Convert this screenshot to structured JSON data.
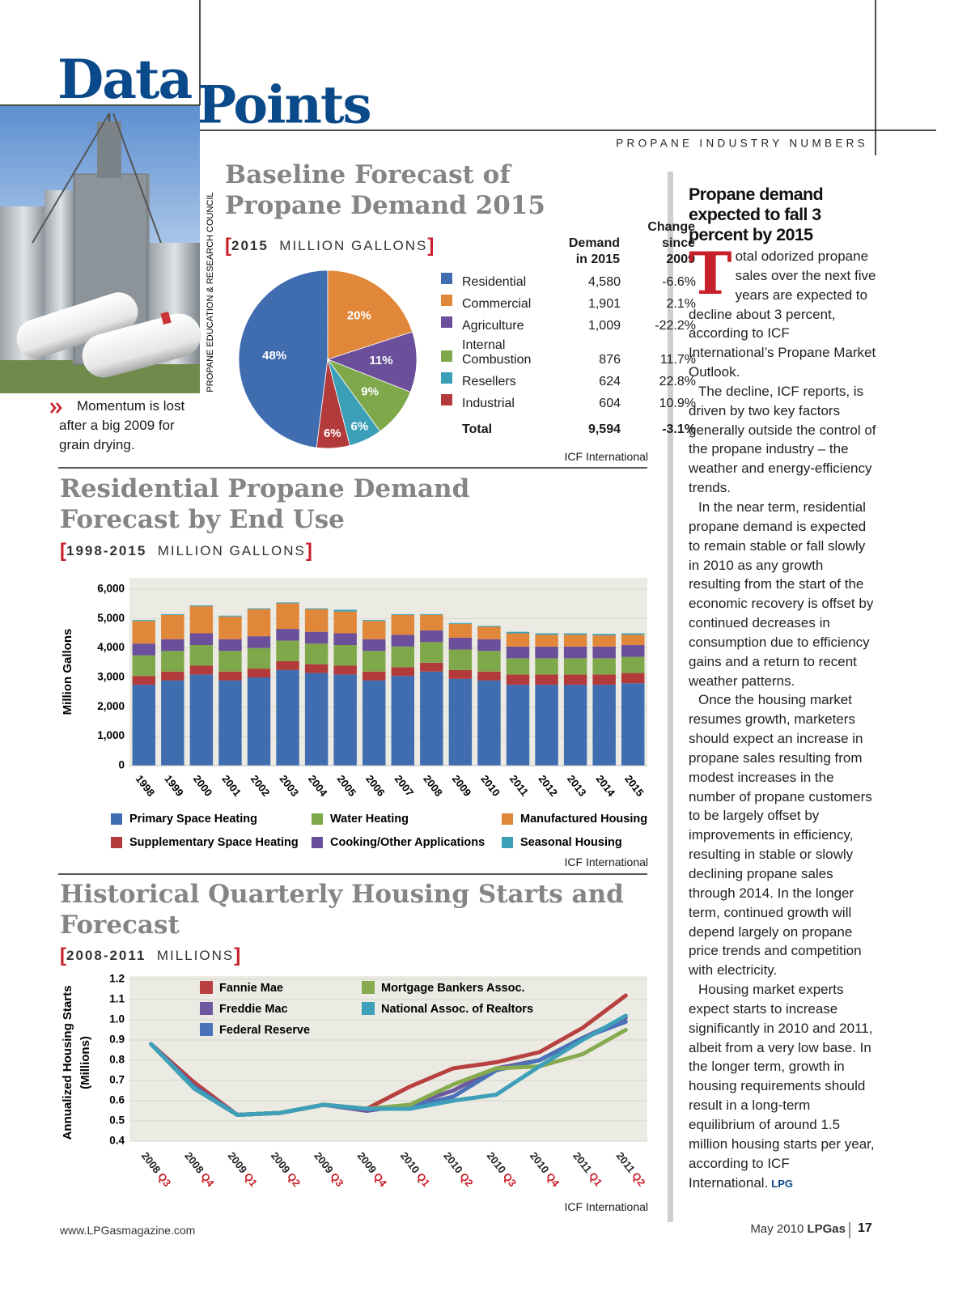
{
  "header": {
    "title_first": "Data",
    "title_second": "Points",
    "section": "PROPANE INDUSTRY NUMBERS"
  },
  "photo": {
    "credit": "PROPANE EDUCATION & RESEARCH COUNCIL",
    "caption": "Momentum is lost after a big 2009 for grain drying."
  },
  "chart_data": [
    {
      "type": "pie",
      "title": "Baseline Forecast of Propane Demand 2015",
      "subtitle_range": "2015",
      "subtitle_units": "MILLION GALLONS",
      "categories": [
        "Residential",
        "Commercial",
        "Agriculture",
        "Internal Combustion",
        "Resellers",
        "Industrial"
      ],
      "values": [
        48,
        20,
        11,
        9,
        6,
        6
      ],
      "value_labels": [
        "48%",
        "20%",
        "11%",
        "9%",
        "6%",
        "6%"
      ],
      "colors": [
        "#3f6db0",
        "#e0873a",
        "#6b4f9a",
        "#7fa84a",
        "#3c9fb8",
        "#b33a3a"
      ],
      "table": {
        "headers": [
          "Demand in 2015",
          "Change since 2009"
        ],
        "rows": [
          [
            "4,580",
            "-6.6%"
          ],
          [
            "1,901",
            "2.1%"
          ],
          [
            "1,009",
            "-22.2%"
          ],
          [
            "876",
            "11.7%"
          ],
          [
            "624",
            "22.8%"
          ],
          [
            "604",
            "10.9%"
          ]
        ],
        "total": [
          "Total",
          "9,594",
          "-3.1%"
        ]
      },
      "source": "ICF International"
    },
    {
      "type": "stacked_bar",
      "title": "Residential Propane Demand Forecast by End Use",
      "subtitle_range": "1998-2015",
      "subtitle_units": "MILLION GALLONS",
      "y_label": "Million Gallons",
      "categories": [
        "1998",
        "1999",
        "2000",
        "2001",
        "2002",
        "2003",
        "2004",
        "2005",
        "2006",
        "2007",
        "2008",
        "2009",
        "2010",
        "2011",
        "2012",
        "2013",
        "2014",
        "2015"
      ],
      "series": [
        {
          "name": "Primary Space Heating",
          "color": "#3f6db0",
          "values": [
            2750,
            2900,
            3100,
            2900,
            3000,
            3250,
            3150,
            3100,
            2900,
            3050,
            3200,
            2950,
            2900,
            2750,
            2750,
            2750,
            2750,
            2800
          ]
        },
        {
          "name": "Supplementary Space Heating",
          "color": "#b33a3a",
          "values": [
            300,
            300,
            300,
            300,
            300,
            300,
            300,
            300,
            300,
            300,
            300,
            300,
            300,
            350,
            350,
            350,
            350,
            350
          ]
        },
        {
          "name": "Water Heating",
          "color": "#7fa84a",
          "values": [
            700,
            700,
            700,
            700,
            700,
            700,
            700,
            700,
            700,
            700,
            700,
            700,
            700,
            550,
            550,
            550,
            550,
            550
          ]
        },
        {
          "name": "Cooking/Other Applications",
          "color": "#6b4f9a",
          "values": [
            400,
            400,
            400,
            400,
            400,
            400,
            400,
            400,
            400,
            400,
            400,
            400,
            400,
            400,
            400,
            400,
            400,
            400
          ]
        },
        {
          "name": "Manufactured Housing",
          "color": "#e0873a",
          "values": [
            770,
            820,
            920,
            770,
            920,
            870,
            770,
            740,
            620,
            670,
            520,
            470,
            420,
            450,
            400,
            400,
            380,
            350
          ]
        },
        {
          "name": "Seasonal Housing",
          "color": "#3c9fb8",
          "values": [
            30,
            30,
            30,
            30,
            30,
            30,
            30,
            60,
            30,
            30,
            30,
            30,
            30,
            50,
            50,
            50,
            50,
            50
          ]
        }
      ],
      "ylim": [
        0,
        6000
      ],
      "yticks": [
        0,
        {
          "value": 1000,
          "label": "1,000"
        },
        {
          "value": 2000,
          "label": "2,000"
        },
        {
          "value": 3000,
          "label": "3,000"
        },
        {
          "value": 4000,
          "label": "4,000"
        },
        {
          "value": 5000,
          "label": "5,000"
        },
        {
          "value": 6000,
          "label": "6,000"
        }
      ],
      "grid": true,
      "source": "ICF International"
    },
    {
      "type": "line",
      "title": "Historical Quarterly Housing Starts and Forecast",
      "subtitle_range": "2008-2011",
      "subtitle_units": "MILLIONS",
      "y_label": [
        "Annualized Housing Starts",
        "(Millions)"
      ],
      "categories": [
        "2008 Q3",
        "2008 Q4",
        "2009 Q1",
        "2009 Q2",
        "2009 Q3",
        "2009 Q4",
        "2010 Q1",
        "2010 Q2",
        "2010 Q3",
        "2010 Q4",
        "2011 Q1",
        "2011 Q2"
      ],
      "series": [
        {
          "name": "Fannie Mae",
          "color": "#b84040",
          "values": [
            0.88,
            0.69,
            0.53,
            0.54,
            0.58,
            0.56,
            0.67,
            0.76,
            0.79,
            0.84,
            0.96,
            1.12
          ]
        },
        {
          "name": "Freddie Mac",
          "color": "#6e58a0",
          "values": [
            0.88,
            0.67,
            0.53,
            0.54,
            0.58,
            0.55,
            0.58,
            0.65,
            0.76,
            0.8,
            0.91,
            1.01
          ]
        },
        {
          "name": "Federal Reserve",
          "color": "#4a72b8",
          "values": [
            0.88,
            0.67,
            0.53,
            0.54,
            0.58,
            0.56,
            0.57,
            0.62,
            0.75,
            0.8,
            0.91,
            0.99
          ]
        },
        {
          "name": "Mortgage Bankers Assoc.",
          "color": "#86aa4e",
          "values": [
            0.88,
            0.66,
            0.53,
            0.54,
            0.58,
            0.56,
            0.58,
            0.68,
            0.76,
            0.77,
            0.83,
            0.95
          ]
        },
        {
          "name": "National Assoc. of Realtors",
          "color": "#3ea0b8",
          "values": [
            0.88,
            0.66,
            0.53,
            0.54,
            0.58,
            0.56,
            0.56,
            0.6,
            0.63,
            0.77,
            0.9,
            1.02
          ]
        }
      ],
      "ylim": [
        0.4,
        1.2
      ],
      "yticks": [
        0.4,
        0.5,
        0.6,
        0.7,
        0.8,
        0.9,
        {
          "value": 1,
          "label": "1.0"
        },
        1.1,
        1.2
      ],
      "grid": true,
      "source": "ICF International"
    }
  ],
  "sidebar": {
    "headline": "Propane demand expected to fall 3 percent by 2015",
    "drop_cap": "T",
    "paragraphs": [
      "otal odorized propane sales over the next five years are expected to decline about 3 percent, according to ICF International’s Propane Market Outlook.",
      "The decline, ICF reports, is driven by two key factors generally outside the control of the propane industry – the weather and energy-efficiency trends.",
      "In the near term, residential propane demand is expected to remain stable or fall slowly in 2010 as any growth resulting from the start of the economic recovery is offset by continued decreases in consumption due to efficiency gains and a return to recent weather patterns.",
      "Once the housing market resumes growth, marketers should expect an increase in propane sales resulting from modest increases in the number of propane customers to be largely offset by improvements in efficiency, resulting in stable or slowly declining propane sales through 2014. In the longer term, continued growth will depend largely on propane price trends and competition with electricity.",
      "Housing market experts expect starts to increase significantly in 2010 and 2011, albeit from a very low base. In the longer term, growth in housing requirements should result in a long-term equilibrium of around 1.5 million housing starts per year, according to ICF International."
    ],
    "end_mark": "LPG"
  },
  "footer": {
    "website": "www.LPGasmagazine.com",
    "issue": "May 2010",
    "magazine": "LPGas",
    "page": "17"
  }
}
